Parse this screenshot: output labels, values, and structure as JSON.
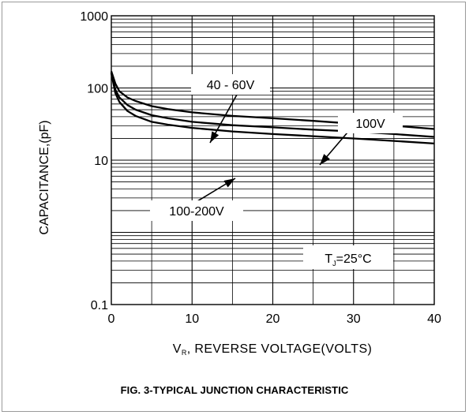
{
  "chart_data": {
    "type": "line",
    "title": "FIG. 3-TYPICAL  JUNCTION CHARACTERISTIC",
    "xlabel": {
      "main": "V",
      "sub": "R",
      "rest": ", REVERSE  VOLTAGE(VOLTS)"
    },
    "ylabel": "CAPACITANCE,(pF)",
    "xlim": [
      0,
      40
    ],
    "ylim": [
      0.1,
      1000
    ],
    "y_scale": "log",
    "grid": true,
    "x_ticks": [
      "0",
      "10",
      "20",
      "30",
      "40"
    ],
    "y_ticks": [
      "0.1",
      "10",
      "100",
      "1000"
    ],
    "series": [
      {
        "name": "40 - 60V",
        "x": [
          0,
          0.5,
          1,
          2,
          3,
          5,
          7,
          10,
          15,
          20,
          25,
          30,
          35,
          40
        ],
        "y": [
          170,
          115,
          90,
          74,
          66,
          56,
          51,
          46,
          41,
          38,
          35,
          32,
          30,
          27
        ]
      },
      {
        "name": "100V",
        "x": [
          0,
          0.5,
          1,
          2,
          3,
          5,
          7,
          10,
          15,
          20,
          25,
          30,
          35,
          40
        ],
        "y": [
          165,
          95,
          74,
          58,
          50,
          42,
          38,
          34,
          30.5,
          28.5,
          26.5,
          25,
          23,
          21
        ]
      },
      {
        "name": "100-200V",
        "x": [
          0,
          0.5,
          1,
          2,
          3,
          5,
          7,
          10,
          15,
          20,
          25,
          30,
          35,
          40
        ],
        "y": [
          160,
          85,
          64,
          48,
          41,
          34,
          31,
          28,
          25,
          23,
          21.5,
          20,
          18.5,
          17
        ]
      }
    ],
    "annotations": [
      {
        "text": "40 - 60V"
      },
      {
        "text": "100V"
      },
      {
        "text": "100-200V"
      },
      {
        "text_main": "T",
        "text_sub": "J",
        "text_rest": "=25°C"
      }
    ]
  }
}
